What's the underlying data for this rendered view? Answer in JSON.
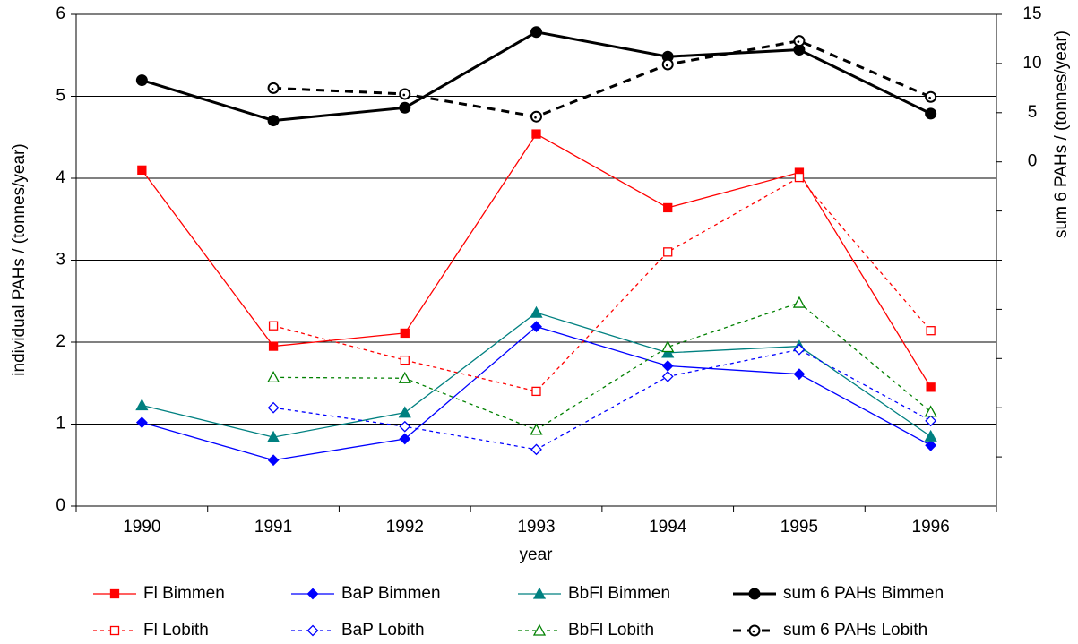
{
  "chart_data": {
    "type": "line",
    "x_label": "year",
    "y_label": "individual PAHs / (tonnes/year)",
    "y2_label": "sum 6 PAHs / (tonnes/year)",
    "categories": [
      "1990",
      "1991",
      "1992",
      "1993",
      "1994",
      "1995",
      "1996"
    ],
    "ylim": [
      0,
      6
    ],
    "yticks": [
      0,
      1,
      2,
      3,
      4,
      5,
      6
    ],
    "y2lim": [
      -35,
      15
    ],
    "y2ticks": [
      {
        "value": -30,
        "label": null
      },
      {
        "value": -25,
        "label": null
      },
      {
        "value": -20,
        "label": null
      },
      {
        "value": -15,
        "label": null
      },
      {
        "value": -10,
        "label": null
      },
      {
        "value": -5,
        "label": null
      },
      0,
      5,
      10,
      15
    ],
    "grid": true,
    "legend": "bottom",
    "series": [
      {
        "name": "Fl Bimmen",
        "color": "#ff0000",
        "marker": "square",
        "filled": true,
        "dashed": false,
        "values": [
          4.1,
          1.95,
          2.11,
          4.54,
          3.64,
          4.07,
          1.45
        ]
      },
      {
        "name": "BaP Bimmen",
        "color": "#0000ff",
        "marker": "diamond",
        "filled": true,
        "dashed": false,
        "values": [
          1.02,
          0.56,
          0.82,
          2.19,
          1.71,
          1.61,
          0.74
        ]
      },
      {
        "name": "BbFl Bimmen",
        "color": "#008080",
        "marker": "triangle",
        "filled": true,
        "dashed": false,
        "values": [
          1.23,
          0.84,
          1.14,
          2.36,
          1.87,
          1.95,
          0.85
        ]
      },
      {
        "name": "sum 6 PAHs Bimmen",
        "color": "#000000",
        "marker": "circle",
        "filled": true,
        "dashed": false,
        "axis": "y2",
        "values": [
          8.3,
          4.2,
          5.5,
          13.2,
          10.7,
          11.4,
          4.9
        ]
      },
      {
        "name": "Fl Lobith",
        "color": "#ff0000",
        "marker": "square",
        "filled": false,
        "dashed": true,
        "values": [
          null,
          2.2,
          1.78,
          1.4,
          3.1,
          4.01,
          2.14
        ]
      },
      {
        "name": "BaP Lobith",
        "color": "#0000ff",
        "marker": "diamond",
        "filled": false,
        "dashed": true,
        "values": [
          null,
          1.2,
          0.97,
          0.69,
          1.58,
          1.91,
          1.04
        ]
      },
      {
        "name": "BbFl Lobith",
        "color": "#008000",
        "marker": "triangle",
        "filled": false,
        "dashed": true,
        "values": [
          null,
          1.57,
          1.56,
          0.93,
          1.94,
          2.48,
          1.15
        ]
      },
      {
        "name": "sum 6 PAHs Lobith",
        "color": "#000000",
        "marker": "circle",
        "filled": false,
        "dashed": true,
        "axis": "y2",
        "values": [
          null,
          7.5,
          6.9,
          4.6,
          9.9,
          12.3,
          6.6
        ]
      }
    ]
  }
}
